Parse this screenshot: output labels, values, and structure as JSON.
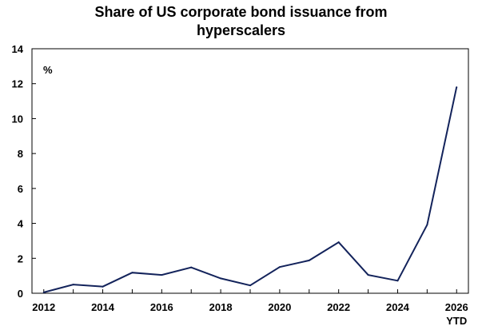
{
  "chart_data": {
    "type": "line",
    "title_line1": "Share of US corporate bond issuance from",
    "title_line2": "hyperscalers",
    "unit_label": "%",
    "x": [
      2012,
      2013,
      2014,
      2015,
      2016,
      2017,
      2018,
      2019,
      2020,
      2021,
      2022,
      2023,
      2024,
      2025,
      2026
    ],
    "series": [
      {
        "values": [
          0.05,
          0.5,
          0.38,
          1.18,
          1.05,
          1.48,
          0.85,
          0.45,
          1.5,
          1.88,
          2.92,
          1.05,
          0.72,
          3.92,
          11.8
        ]
      }
    ],
    "x_tick_labels": [
      "2012",
      "2014",
      "2016",
      "2018",
      "2020",
      "2022",
      "2024",
      "2026"
    ],
    "x_tick_values": [
      2012,
      2014,
      2016,
      2018,
      2020,
      2022,
      2024,
      2026
    ],
    "x_tick_sublabel": "YTD",
    "y_ticks": [
      0,
      2,
      4,
      6,
      8,
      10,
      12,
      14
    ],
    "xlim": [
      2011.6,
      2026.4
    ],
    "ylim": [
      0,
      14
    ],
    "grid": false,
    "line_color": "#13235b"
  }
}
